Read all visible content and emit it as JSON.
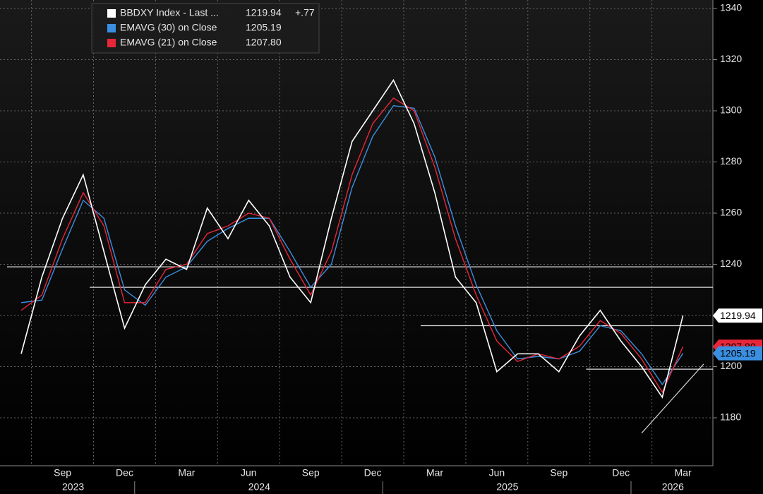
{
  "chart_data": {
    "type": "line",
    "x": [
      "2023-07",
      "2023-08",
      "2023-09",
      "2023-10",
      "2023-11",
      "2023-12",
      "2024-01",
      "2024-02",
      "2024-03",
      "2024-04",
      "2024-05",
      "2024-06",
      "2024-07",
      "2024-08",
      "2024-09",
      "2024-10",
      "2024-11",
      "2024-12",
      "2025-01",
      "2025-02",
      "2025-03",
      "2025-04",
      "2025-05",
      "2025-06",
      "2025-07",
      "2025-08",
      "2025-09",
      "2025-10",
      "2025-11",
      "2025-12",
      "2026-01",
      "2026-02",
      "2026-03"
    ],
    "series": [
      {
        "name": "BBDXY Index - Last ...",
        "color": "#ffffff",
        "change": "+.77",
        "values": [
          1205,
          1235,
          1258,
          1275,
          1245,
          1215,
          1232,
          1242,
          1238,
          1262,
          1250,
          1265,
          1255,
          1235,
          1225,
          1258,
          1288,
          1300,
          1312,
          1295,
          1268,
          1235,
          1225,
          1198,
          1205,
          1205,
          1198,
          1212,
          1222,
          1210,
          1200,
          1188,
          1219.94
        ]
      },
      {
        "name": "EMAVG (30) on Close",
        "color": "#3a8fe0",
        "values": [
          1225,
          1226,
          1246,
          1265,
          1258,
          1230,
          1224,
          1235,
          1239,
          1249,
          1254,
          1258,
          1258,
          1245,
          1231,
          1240,
          1270,
          1290,
          1302,
          1301,
          1282,
          1255,
          1232,
          1214,
          1203,
          1204,
          1203,
          1206,
          1216,
          1214,
          1205,
          1193,
          1205.19
        ]
      },
      {
        "name": "EMAVG (21) on Close",
        "color": "#e8263a",
        "values": [
          1222,
          1228,
          1250,
          1268,
          1255,
          1225,
          1225,
          1238,
          1240,
          1252,
          1255,
          1260,
          1258,
          1242,
          1228,
          1245,
          1275,
          1295,
          1305,
          1300,
          1278,
          1250,
          1228,
          1210,
          1202,
          1205,
          1203,
          1208,
          1218,
          1213,
          1203,
          1190,
          1207.8
        ],
        "value_labels": {
          "32": "1207.80"
        }
      }
    ],
    "ylim": [
      1160,
      1343
    ],
    "yticks": [
      1180,
      1200,
      1220,
      1240,
      1260,
      1280,
      1300,
      1320,
      1340
    ],
    "xtick_labels": [
      {
        "x": "2023-09",
        "label": "Sep"
      },
      {
        "x": "2023-12",
        "label": "Dec"
      },
      {
        "x": "2024-03",
        "label": "Mar"
      },
      {
        "x": "2024-06",
        "label": "Jun"
      },
      {
        "x": "2024-09",
        "label": "Sep"
      },
      {
        "x": "2024-12",
        "label": "Dec"
      },
      {
        "x": "2025-03",
        "label": "Mar"
      },
      {
        "x": "2025-06",
        "label": "Jun"
      },
      {
        "x": "2025-09",
        "label": "Sep"
      },
      {
        "x": "2025-12",
        "label": "Dec"
      },
      {
        "x": "2026-03",
        "label": "Mar"
      }
    ],
    "year_labels": [
      {
        "x": "2023-09",
        "label": "2023"
      },
      {
        "x": "2024-06",
        "label": "2024"
      },
      {
        "x": "2025-06",
        "label": "2025"
      },
      {
        "x": "2026-02",
        "label": "2026"
      }
    ],
    "reference_lines": [
      {
        "value": 1239,
        "start": "2023-07"
      },
      {
        "value": 1231,
        "start": "2023-11"
      },
      {
        "value": 1216,
        "start": "2025-03"
      },
      {
        "value": 1199,
        "start": "2025-11"
      }
    ],
    "trend_line": {
      "x": [
        "2026-01",
        "2026-04"
      ],
      "values": [
        1174,
        1201
      ]
    },
    "grid": true
  }
}
